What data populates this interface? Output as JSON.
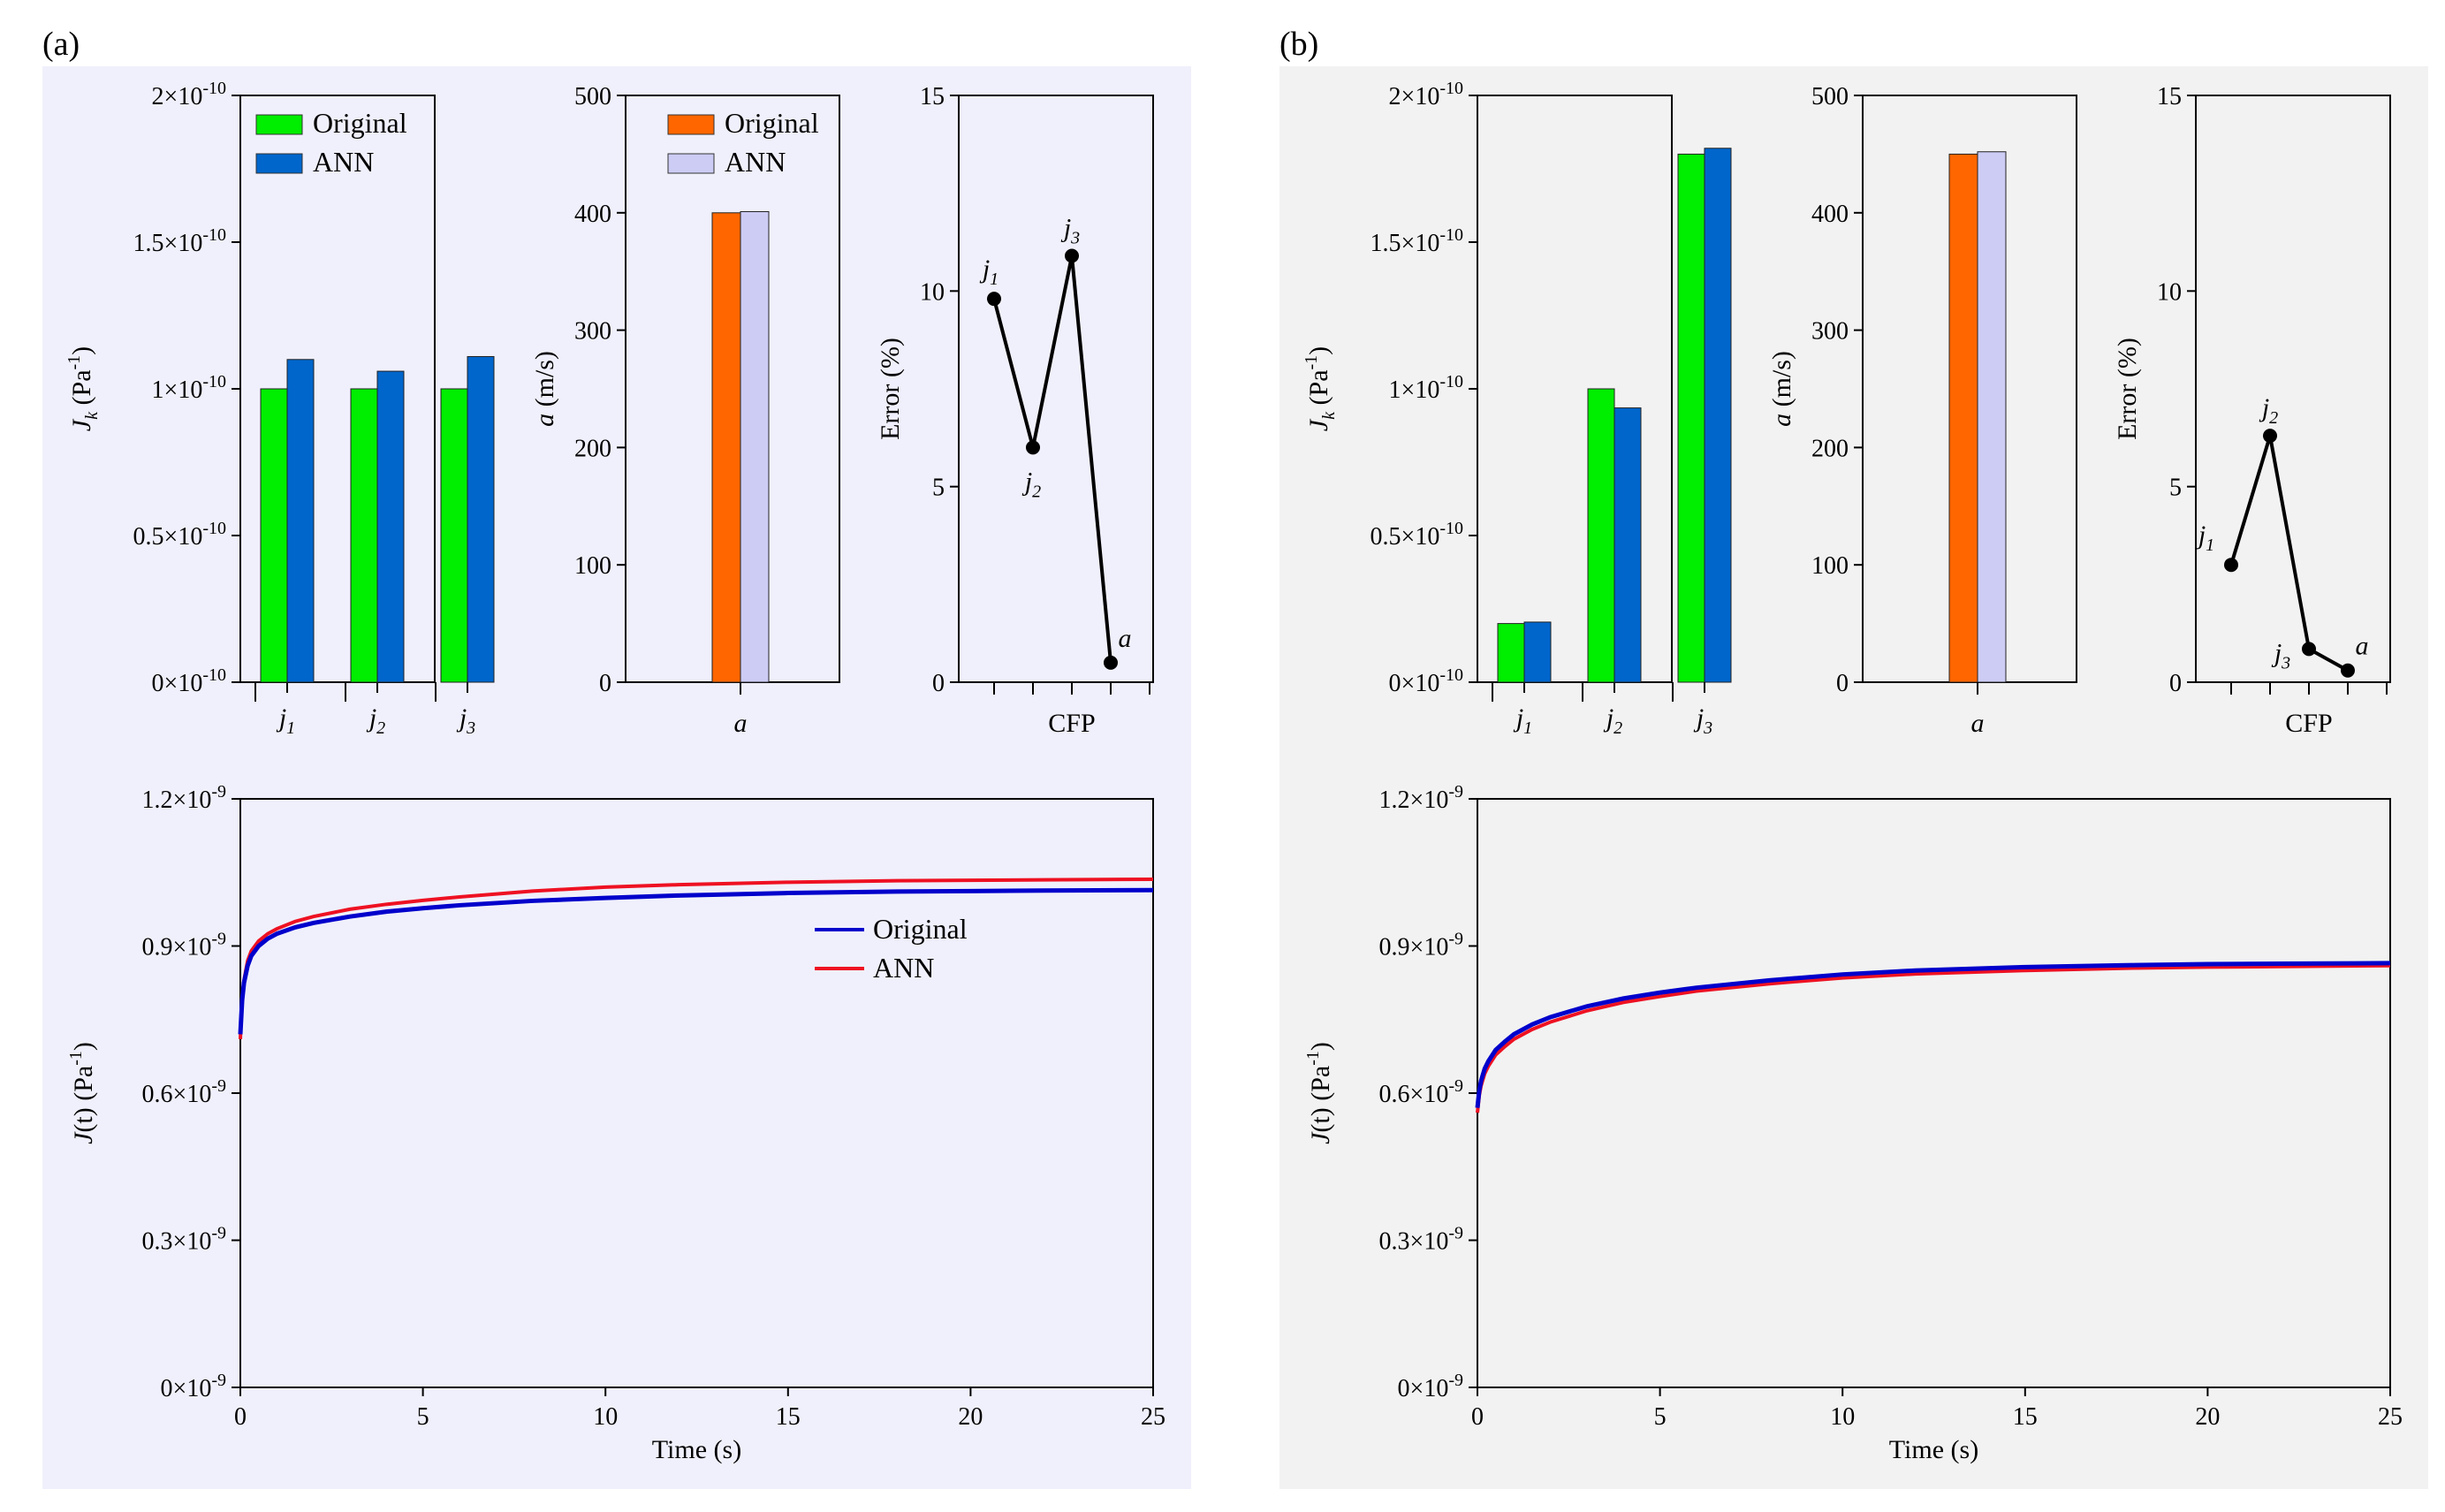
{
  "panels": [
    {
      "label": "(a)",
      "background": "#f0f0fc"
    },
    {
      "label": "(b)",
      "background": "#f2f2f2"
    }
  ],
  "colors": {
    "original_green": "#00ee00",
    "ann_blue": "#0066cc",
    "original_orange": "#ff6600",
    "ann_lavender": "#ccccf5",
    "line_original": "#0000cc",
    "line_ann": "#ee1122"
  },
  "chart_data": [
    {
      "id": "a-jk",
      "panel": 0,
      "type": "bar",
      "ylabel": "J_k (Pa⁻¹)",
      "categories": [
        "j1",
        "j2",
        "j3"
      ],
      "yticks": [
        "0×10⁻¹⁰",
        "0.5×10⁻¹⁰",
        "1×10⁻¹⁰",
        "1.5×10⁻¹⁰",
        "2×10⁻¹⁰"
      ],
      "ylim": [
        0,
        2e-10
      ],
      "legend": [
        "Original",
        "ANN"
      ],
      "series": [
        {
          "name": "Original",
          "values": [
            1e-10,
            1e-10,
            1e-10
          ]
        },
        {
          "name": "ANN",
          "values": [
            1.1e-10,
            1.06e-10,
            1.11e-10
          ]
        }
      ]
    },
    {
      "id": "a-a",
      "panel": 0,
      "type": "bar",
      "ylabel": "a (m/s)",
      "categories": [
        "a"
      ],
      "yticks": [
        "0",
        "100",
        "200",
        "300",
        "400",
        "500"
      ],
      "ylim": [
        0,
        500
      ],
      "legend": [
        "Original",
        "ANN"
      ],
      "series": [
        {
          "name": "Original",
          "values": [
            400
          ]
        },
        {
          "name": "ANN",
          "values": [
            401
          ]
        }
      ]
    },
    {
      "id": "a-err",
      "panel": 0,
      "type": "line",
      "ylabel": "Error (%)",
      "xlabel": "CFP",
      "yticks": [
        "0",
        "5",
        "10",
        "15"
      ],
      "ylim": [
        0,
        15
      ],
      "points": [
        {
          "label": "j1",
          "value": 9.8
        },
        {
          "label": "j2",
          "value": 6.0
        },
        {
          "label": "j3",
          "value": 10.9
        },
        {
          "label": "a",
          "value": 0.5
        }
      ]
    },
    {
      "id": "a-jt",
      "panel": 0,
      "type": "line",
      "ylabel": "J(t) (Pa⁻¹)",
      "xlabel": "Time (s)",
      "xticks": [
        "0",
        "5",
        "10",
        "15",
        "20",
        "25"
      ],
      "yticks": [
        "0×10⁻⁹",
        "0.3×10⁻⁹",
        "0.6×10⁻⁹",
        "0.9×10⁻⁹",
        "1.2×10⁻⁹"
      ],
      "xlim": [
        0,
        25
      ],
      "ylim": [
        0,
        1.2e-09
      ],
      "legend": [
        "Original",
        "ANN"
      ],
      "series": [
        {
          "name": "Original",
          "x": [
            0,
            0.05,
            0.1,
            0.2,
            0.3,
            0.5,
            0.75,
            1,
            1.5,
            2,
            3,
            4,
            5,
            6,
            8,
            10,
            12,
            15,
            18,
            20,
            22,
            25
          ],
          "y": [
            7.2e-10,
            7.9e-10,
            8.25e-10,
            8.6e-10,
            8.8e-10,
            9e-10,
            9.15e-10,
            9.25e-10,
            9.38e-10,
            9.47e-10,
            9.6e-10,
            9.7e-10,
            9.77e-10,
            9.83e-10,
            9.92e-10,
            9.98e-10,
            1.003e-09,
            1.008e-09,
            1.011e-09,
            1.012e-09,
            1.013e-09,
            1.014e-09
          ]
        },
        {
          "name": "ANN",
          "x": [
            0,
            0.05,
            0.1,
            0.2,
            0.3,
            0.5,
            0.75,
            1,
            1.5,
            2,
            3,
            4,
            5,
            6,
            8,
            10,
            12,
            15,
            18,
            20,
            22,
            25
          ],
          "y": [
            7.1e-10,
            7.95e-10,
            8.3e-10,
            8.7e-10,
            8.9e-10,
            9.1e-10,
            9.25e-10,
            9.35e-10,
            9.5e-10,
            9.6e-10,
            9.75e-10,
            9.85e-10,
            9.93e-10,
            1e-09,
            1.012e-09,
            1.02e-09,
            1.025e-09,
            1.03e-09,
            1.033e-09,
            1.034e-09,
            1.035e-09,
            1.036e-09
          ]
        }
      ]
    },
    {
      "id": "b-jk",
      "panel": 1,
      "type": "bar",
      "ylabel": "J_k (Pa⁻¹)",
      "categories": [
        "j1",
        "j2",
        "j3"
      ],
      "yticks": [
        "0×10⁻¹⁰",
        "0.5×10⁻¹⁰",
        "1×10⁻¹⁰",
        "1.5×10⁻¹⁰",
        "2×10⁻¹⁰"
      ],
      "ylim": [
        0,
        2e-10
      ],
      "series": [
        {
          "name": "Original",
          "values": [
            2e-11,
            1e-10,
            1.8e-10
          ]
        },
        {
          "name": "ANN",
          "values": [
            2.05e-11,
            9.35e-11,
            1.82e-10
          ]
        }
      ]
    },
    {
      "id": "b-a",
      "panel": 1,
      "type": "bar",
      "ylabel": "a (m/s)",
      "categories": [
        "a"
      ],
      "yticks": [
        "0",
        "100",
        "200",
        "300",
        "400",
        "500"
      ],
      "ylim": [
        0,
        500
      ],
      "series": [
        {
          "name": "Original",
          "values": [
            450
          ]
        },
        {
          "name": "ANN",
          "values": [
            452
          ]
        }
      ]
    },
    {
      "id": "b-err",
      "panel": 1,
      "type": "line",
      "ylabel": "Error (%)",
      "xlabel": "CFP",
      "yticks": [
        "0",
        "5",
        "10",
        "15"
      ],
      "ylim": [
        0,
        15
      ],
      "points": [
        {
          "label": "j1",
          "value": 3.0
        },
        {
          "label": "j2",
          "value": 6.3
        },
        {
          "label": "j3",
          "value": 0.85
        },
        {
          "label": "a",
          "value": 0.3
        }
      ]
    },
    {
      "id": "b-jt",
      "panel": 1,
      "type": "line",
      "ylabel": "J(t) (Pa⁻¹)",
      "xlabel": "Time (s)",
      "xticks": [
        "0",
        "5",
        "10",
        "15",
        "20",
        "25"
      ],
      "yticks": [
        "0×10⁻⁹",
        "0.3×10⁻⁹",
        "0.6×10⁻⁹",
        "0.9×10⁻⁹",
        "1.2×10⁻⁹"
      ],
      "xlim": [
        0,
        25
      ],
      "ylim": [
        0,
        1.2e-09
      ],
      "series": [
        {
          "name": "Original",
          "x": [
            0,
            0.05,
            0.1,
            0.2,
            0.3,
            0.5,
            0.75,
            1,
            1.5,
            2,
            3,
            4,
            5,
            6,
            8,
            10,
            12,
            15,
            18,
            20,
            22,
            25
          ],
          "y": [
            5.7e-10,
            6.05e-10,
            6.25e-10,
            6.5e-10,
            6.65e-10,
            6.88e-10,
            7.05e-10,
            7.2e-10,
            7.4e-10,
            7.55e-10,
            7.77e-10,
            7.93e-10,
            8.05e-10,
            8.15e-10,
            8.3e-10,
            8.42e-10,
            8.5e-10,
            8.57e-10,
            8.61e-10,
            8.63e-10,
            8.64e-10,
            8.65e-10
          ]
        },
        {
          "name": "ANN",
          "x": [
            0,
            0.05,
            0.1,
            0.2,
            0.3,
            0.5,
            0.75,
            1,
            1.5,
            2,
            3,
            4,
            5,
            6,
            8,
            10,
            12,
            15,
            18,
            20,
            22,
            25
          ],
          "y": [
            5.6e-10,
            5.95e-10,
            6.15e-10,
            6.4e-10,
            6.55e-10,
            6.78e-10,
            6.95e-10,
            7.1e-10,
            7.3e-10,
            7.45e-10,
            7.68e-10,
            7.85e-10,
            7.97e-10,
            8.08e-10,
            8.23e-10,
            8.35e-10,
            8.43e-10,
            8.5e-10,
            8.55e-10,
            8.57e-10,
            8.58e-10,
            8.6e-10
          ]
        }
      ]
    }
  ]
}
